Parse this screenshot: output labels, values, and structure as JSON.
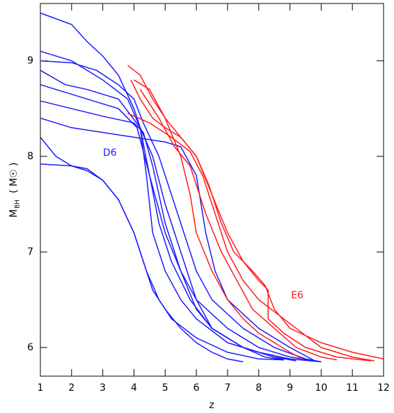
{
  "chart_data": {
    "type": "line",
    "xlabel": "z",
    "ylabel": "M",
    "ylabel_sub": "BH",
    "ylabel_unit": "( M☉ )",
    "annotations": [
      {
        "text": "D6",
        "color": "#1a1aff"
      },
      {
        "text": "E6",
        "color": "#ff1a1a"
      }
    ],
    "xlim": [
      1,
      12
    ],
    "xticks": [
      1,
      2,
      3,
      4,
      5,
      6,
      7,
      8,
      9,
      10,
      11,
      12
    ],
    "ylim": [
      5.7,
      9.6
    ],
    "yticks": [
      6,
      7,
      8,
      9
    ],
    "series": [
      {
        "color": "#1a1aff",
        "x": [
          1,
          2,
          2.5,
          3,
          3.5,
          4,
          4.2,
          4.4,
          4.6,
          5,
          5.5,
          6,
          7,
          8,
          9,
          10
        ],
        "values": [
          9.5,
          9.38,
          9.2,
          9.05,
          8.85,
          8.5,
          8.3,
          7.8,
          7.2,
          6.8,
          6.5,
          6.3,
          6.05,
          5.95,
          5.88,
          5.85
        ]
      },
      {
        "color": "#1a1aff",
        "x": [
          1,
          2,
          3,
          3.8,
          4.2,
          4.5,
          4.8,
          5.2,
          5.8,
          6.5,
          7.5,
          8.8
        ],
        "values": [
          9.1,
          9.0,
          8.8,
          8.6,
          8.3,
          7.8,
          7.3,
          6.9,
          6.5,
          6.2,
          6.0,
          5.87
        ]
      },
      {
        "color": "#1a1aff",
        "x": [
          1,
          2,
          2.8,
          3.5,
          4,
          4.3,
          4.8,
          5.2,
          5.6,
          6,
          6.5,
          7.5,
          8.5,
          9.5,
          10
        ],
        "values": [
          9.0,
          8.98,
          8.9,
          8.75,
          8.6,
          8.35,
          8.0,
          7.6,
          7.2,
          6.8,
          6.5,
          6.2,
          6.0,
          5.88,
          5.85
        ]
      },
      {
        "color": "#1a1aff",
        "x": [
          1,
          1.8,
          2.5,
          3.5,
          4.2,
          4.6,
          5,
          5.5,
          6,
          6.5,
          7.5,
          8.5,
          9.2
        ],
        "values": [
          8.9,
          8.75,
          8.7,
          8.6,
          8.3,
          8.0,
          7.5,
          7.0,
          6.5,
          6.2,
          6.0,
          5.9,
          5.86
        ]
      },
      {
        "color": "#1a1aff",
        "x": [
          1,
          1.5,
          2.5,
          3.5,
          4.1,
          4.5,
          5,
          5.5,
          6,
          6.5,
          7.5,
          8.2,
          8.8
        ],
        "values": [
          8.75,
          8.7,
          8.6,
          8.5,
          8.3,
          7.8,
          7.2,
          6.8,
          6.4,
          6.2,
          6.0,
          5.9,
          5.87
        ]
      },
      {
        "color": "#1a1aff",
        "x": [
          1,
          2,
          3,
          4,
          4.3,
          4.6,
          5,
          5.5,
          6,
          7,
          8,
          9,
          10
        ],
        "values": [
          8.58,
          8.5,
          8.42,
          8.35,
          8.25,
          7.9,
          7.3,
          6.8,
          6.5,
          6.2,
          6.0,
          5.9,
          5.85
        ]
      },
      {
        "color": "#1a1aff",
        "x": [
          1,
          1.5,
          2,
          3,
          4,
          5,
          5.5,
          6,
          6.3,
          6.6,
          7,
          8,
          9,
          9.8
        ],
        "values": [
          8.4,
          8.35,
          8.3,
          8.25,
          8.2,
          8.15,
          8.1,
          7.8,
          7.2,
          6.8,
          6.5,
          6.2,
          6.0,
          5.86
        ]
      },
      {
        "color": "#1a1aff",
        "x": [
          1,
          1.5,
          2,
          2.5,
          3,
          3.5,
          4,
          4.3,
          4.6,
          5,
          5.5,
          6,
          6.5,
          7,
          7.5
        ],
        "values": [
          8.2,
          8.0,
          7.9,
          7.85,
          7.75,
          7.55,
          7.2,
          6.9,
          6.6,
          6.4,
          6.2,
          6.05,
          5.95,
          5.88,
          5.85
        ]
      },
      {
        "color": "#1a1aff",
        "x": [
          1,
          2,
          2.5,
          3,
          3.5,
          4,
          4.4,
          4.8,
          5.2,
          6,
          7,
          8,
          8.8
        ],
        "values": [
          7.92,
          7.9,
          7.87,
          7.75,
          7.55,
          7.2,
          6.8,
          6.5,
          6.3,
          6.1,
          5.95,
          5.88,
          5.87
        ]
      },
      {
        "color": "#ff1a1a",
        "x": [
          3.8,
          4.2,
          4.6,
          5,
          5.5,
          6,
          6.4,
          6.8,
          7.2,
          7.8,
          8.2,
          8.5,
          9,
          10,
          11,
          12
        ],
        "values": [
          8.95,
          8.85,
          8.6,
          8.4,
          8.2,
          8.0,
          7.7,
          7.3,
          7.0,
          6.8,
          6.65,
          6.4,
          6.2,
          6.05,
          5.95,
          5.88
        ]
      },
      {
        "color": "#ff1a1a",
        "x": [
          3.9,
          4.2,
          4.6,
          5,
          5.5,
          6,
          6.5,
          7,
          7.5,
          8,
          8.3,
          8.3,
          8.8,
          9.5,
          10.5,
          11.6
        ],
        "values": [
          8.8,
          8.6,
          8.4,
          8.3,
          8.2,
          8.0,
          7.6,
          7.2,
          6.9,
          6.7,
          6.6,
          6.3,
          6.15,
          6.0,
          5.9,
          5.86
        ]
      },
      {
        "color": "#ff1a1a",
        "x": [
          3.8,
          4.5,
          5.2,
          5.8,
          6.2,
          6.6,
          7,
          7.5,
          8,
          9,
          10,
          11,
          11.7
        ],
        "values": [
          8.45,
          8.35,
          8.2,
          8.05,
          7.8,
          7.4,
          7.0,
          6.7,
          6.5,
          6.25,
          6.0,
          5.9,
          5.86
        ]
      },
      {
        "color": "#ff1a1a",
        "x": [
          4,
          4.5,
          5,
          5.5,
          5.8,
          6,
          6.5,
          7,
          7.5,
          8,
          8.5,
          9,
          9.4
        ],
        "values": [
          8.8,
          8.7,
          8.4,
          8.0,
          7.6,
          7.2,
          6.8,
          6.5,
          6.3,
          6.15,
          6.05,
          5.95,
          5.88
        ]
      },
      {
        "color": "#ff1a1a",
        "x": [
          4.2,
          4.8,
          5.3,
          5.8,
          6.3,
          6.8,
          7.3,
          7.8,
          8.5,
          9.2,
          10,
          10.5
        ],
        "values": [
          8.7,
          8.4,
          8.1,
          7.9,
          7.4,
          7.0,
          6.7,
          6.4,
          6.2,
          6.0,
          5.9,
          5.87
        ]
      }
    ]
  }
}
